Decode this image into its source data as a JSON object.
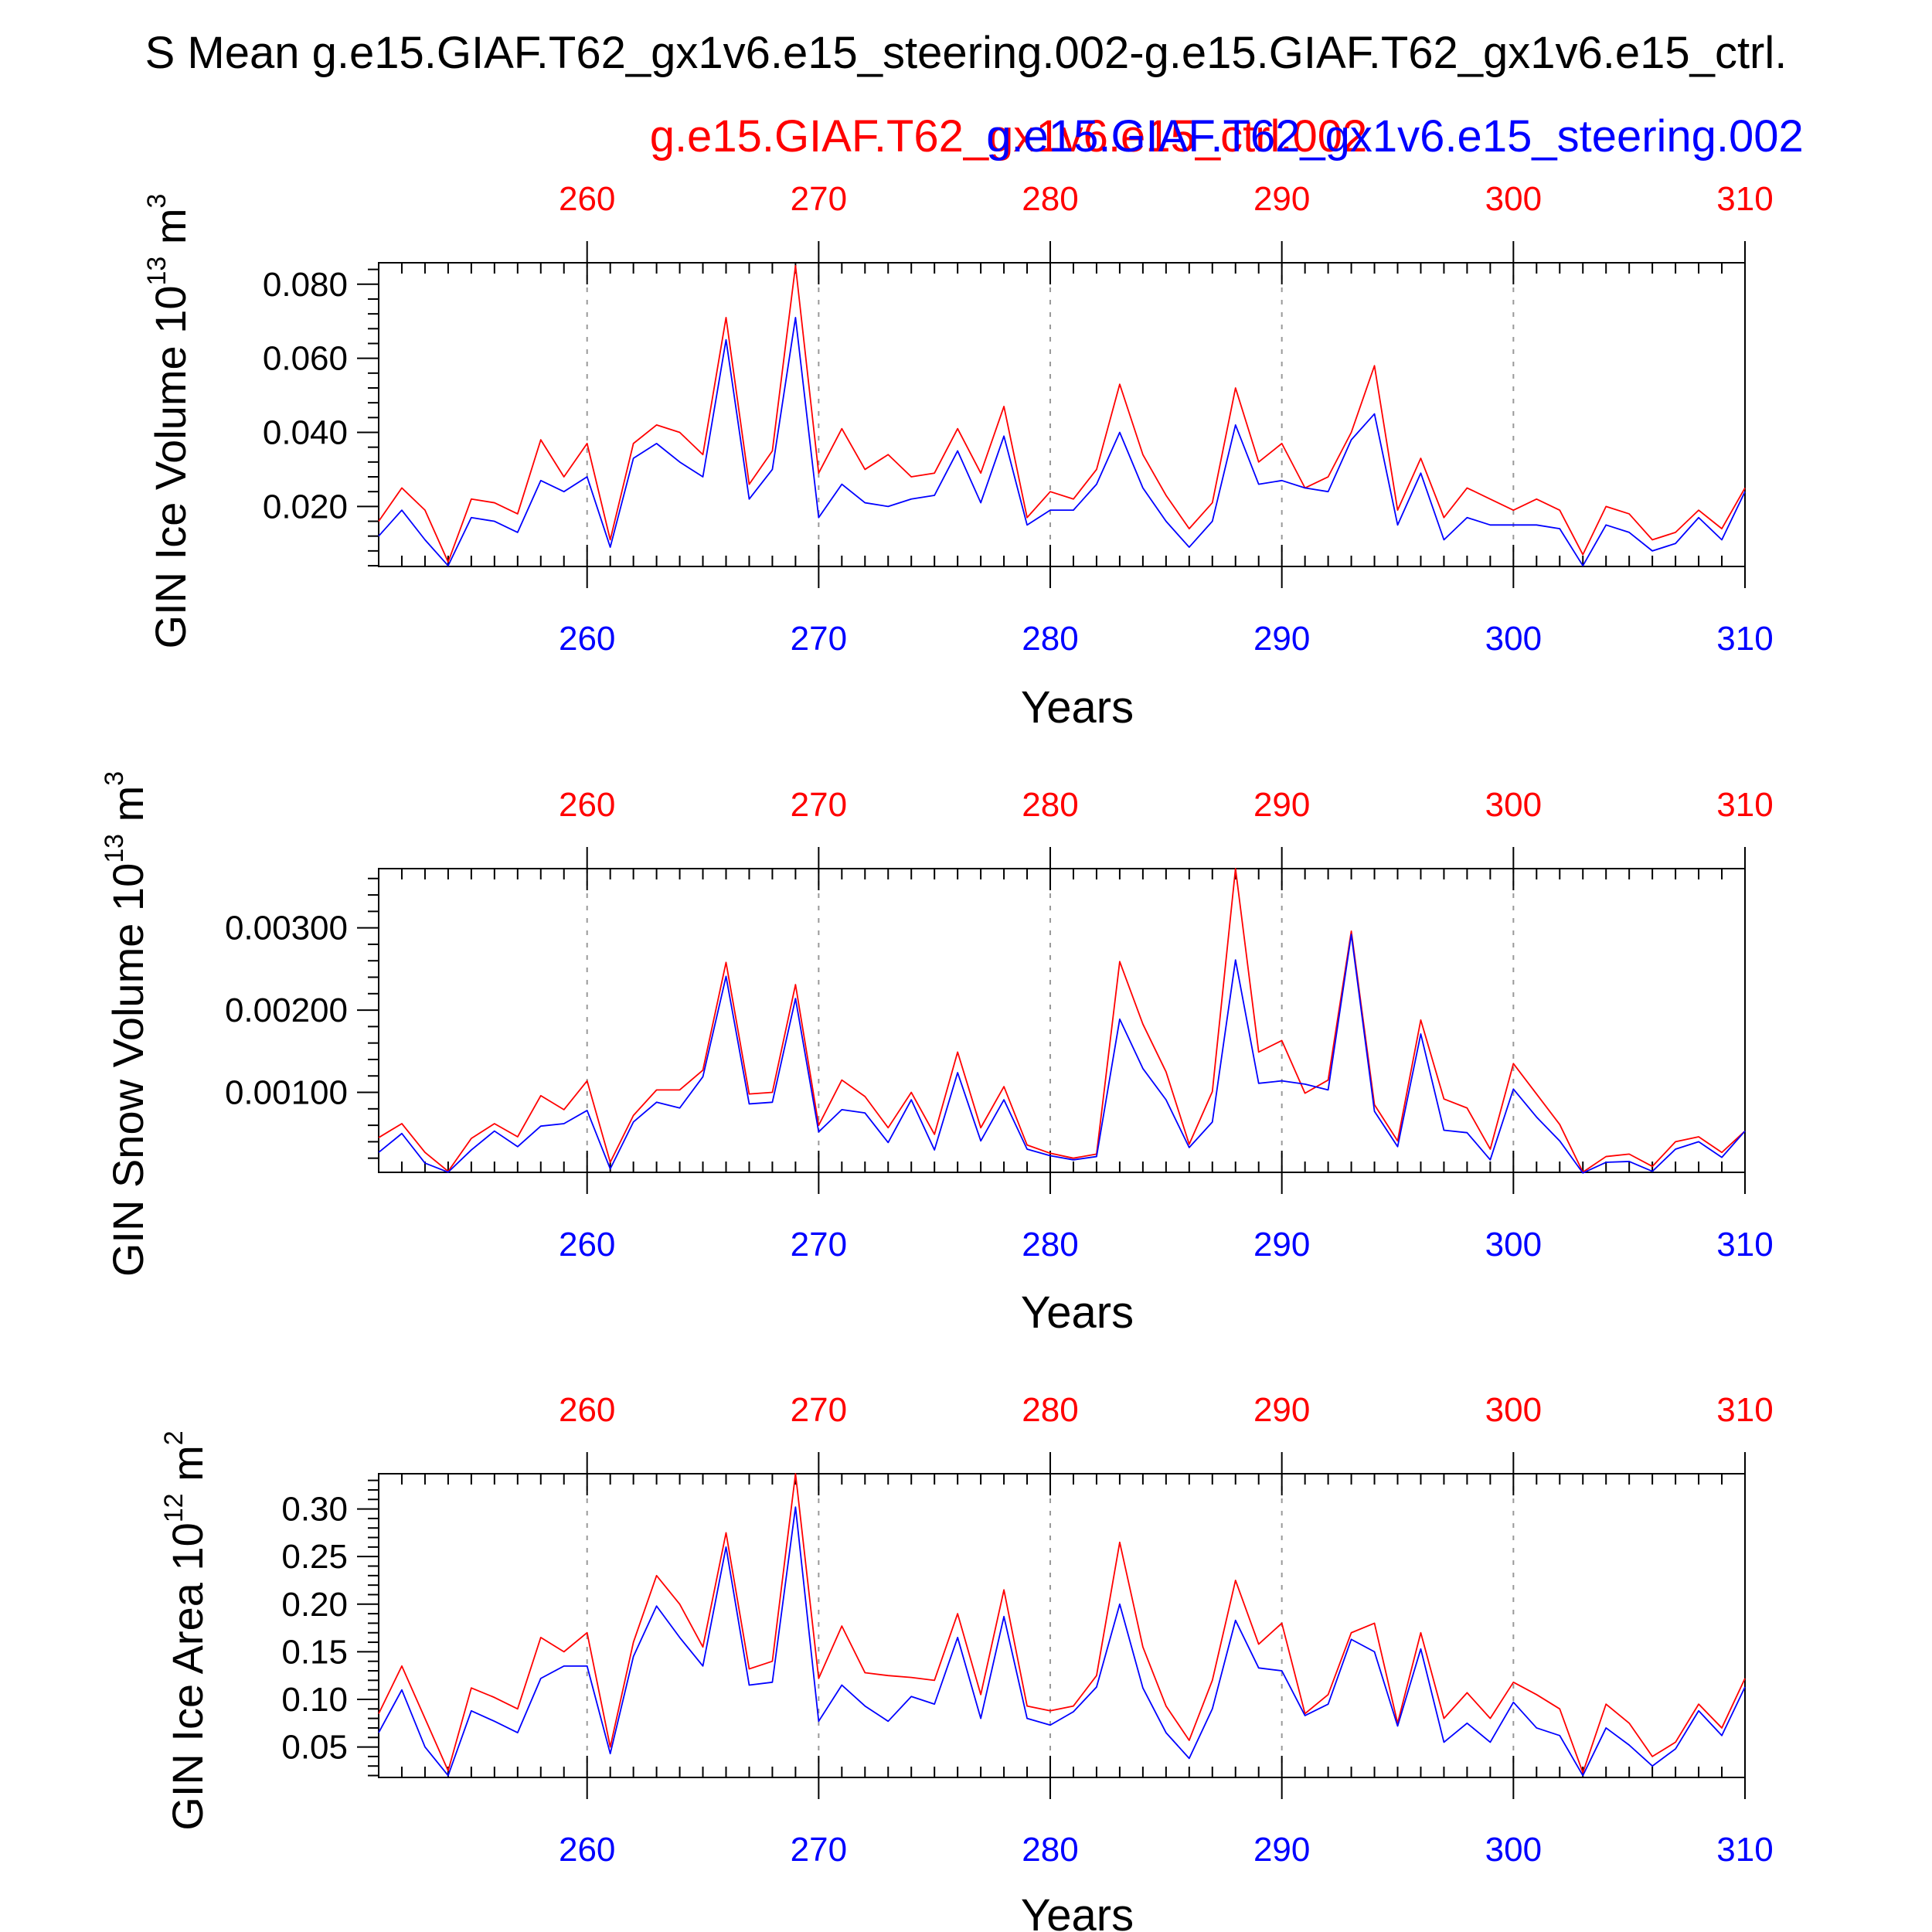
{
  "title": "S Mean g.e15.GIAF.T62_gx1v6.e15_steering.002-g.e15.GIAF.T62_gx1v6.e15_ctrl.",
  "legend": [
    {
      "label": "g.e15.GIAF.T62_gx1v6.e15_ctrl.002",
      "color": "#ff0000"
    },
    {
      "label": "g.e15.GIAF.T62_gx1v6.e15_steering.002",
      "color": "#0000ff"
    }
  ],
  "chart_data": [
    {
      "type": "line",
      "ylabel": "GIN Ice Volume 10",
      "ylabel_exp": "13",
      "ylabel_unit": " m",
      "ylabel_unit_exp": "3",
      "xlabel": "Years",
      "xlim": [
        251,
        310
      ],
      "ylim": [
        0.0038,
        0.0858
      ],
      "yticks": [
        0.02,
        0.04,
        0.06,
        0.08
      ],
      "yticklabels": [
        "0.020",
        "0.040",
        "0.060",
        "0.080"
      ],
      "yminor": 0.004,
      "xticks": [
        260,
        270,
        280,
        290,
        300,
        310
      ],
      "xticklabels": [
        "260",
        "270",
        "280",
        "290",
        "300",
        "310"
      ],
      "x_start": 251,
      "series": [
        {
          "name": "g.e15.GIAF.T62_gx1v6.e15_ctrl.002",
          "color": "#ff0000",
          "values": [
            0.016,
            0.025,
            0.019,
            0.005,
            0.022,
            0.021,
            0.018,
            0.038,
            0.028,
            0.037,
            0.011,
            0.037,
            0.042,
            0.04,
            0.034,
            0.071,
            0.026,
            0.035,
            0.085,
            0.029,
            0.041,
            0.03,
            0.034,
            0.028,
            0.029,
            0.041,
            0.029,
            0.047,
            0.017,
            0.024,
            0.022,
            0.03,
            0.053,
            0.034,
            0.023,
            0.014,
            0.021,
            0.052,
            0.032,
            0.037,
            0.025,
            0.028,
            0.04,
            0.058,
            0.019,
            0.033,
            0.017,
            0.025,
            0.022,
            0.019,
            0.022,
            0.019,
            0.007,
            0.02,
            0.018,
            0.011,
            0.013,
            0.019,
            0.014,
            0.025
          ]
        },
        {
          "name": "g.e15.GIAF.T62_gx1v6.e15_steering.002",
          "color": "#0000ff",
          "values": [
            0.012,
            0.019,
            0.011,
            0.004,
            0.017,
            0.016,
            0.013,
            0.027,
            0.024,
            0.028,
            0.009,
            0.033,
            0.037,
            0.032,
            0.028,
            0.065,
            0.022,
            0.03,
            0.071,
            0.017,
            0.026,
            0.021,
            0.02,
            0.022,
            0.023,
            0.035,
            0.021,
            0.039,
            0.015,
            0.019,
            0.019,
            0.026,
            0.04,
            0.025,
            0.016,
            0.009,
            0.016,
            0.042,
            0.026,
            0.027,
            0.025,
            0.024,
            0.038,
            0.045,
            0.015,
            0.029,
            0.011,
            0.017,
            0.015,
            0.015,
            0.015,
            0.014,
            0.004,
            0.015,
            0.013,
            0.008,
            0.01,
            0.017,
            0.011,
            0.024
          ]
        }
      ]
    },
    {
      "type": "line",
      "ylabel": "GIN Snow Volume 10",
      "ylabel_exp": "13",
      "ylabel_unit": " m",
      "ylabel_unit_exp": "3",
      "xlabel": "Years",
      "xlim": [
        251,
        310
      ],
      "ylim": [
        2.8e-05,
        0.00372
      ],
      "yticks": [
        0.001,
        0.002,
        0.003
      ],
      "yticklabels": [
        "0.00100",
        "0.00200",
        "0.00300"
      ],
      "yminor": 0.0002,
      "xticks": [
        260,
        270,
        280,
        290,
        300,
        310
      ],
      "xticklabels": [
        "260",
        "270",
        "280",
        "290",
        "300",
        "310"
      ],
      "x_start": 251,
      "series": [
        {
          "name": "g.e15.GIAF.T62_gx1v6.e15_ctrl.002",
          "color": "#ff0000",
          "values": [
            0.00045,
            0.00062,
            0.00027,
            4e-05,
            0.00044,
            0.00062,
            0.00046,
            0.00096,
            0.00079,
            0.00114,
            0.00015,
            0.00072,
            0.00103,
            0.00103,
            0.00127,
            0.00258,
            0.00098,
            0.001,
            0.00231,
            0.0006,
            0.00115,
            0.00095,
            0.00057,
            0.001,
            0.00049,
            0.00149,
            0.00057,
            0.00107,
            0.00036,
            0.00026,
            0.0002,
            0.00025,
            0.00259,
            0.00183,
            0.00125,
            0.00037,
            0.00101,
            0.00372,
            0.00149,
            0.00163,
            0.00099,
            0.00115,
            0.00296,
            0.00085,
            0.00041,
            0.00188,
            0.00092,
            0.00081,
            0.00031,
            0.00135,
            0.00098,
            0.00061,
            3e-05,
            0.00022,
            0.00025,
            0.0001,
            0.0004,
            0.00046,
            0.00027,
            0.00053
          ]
        },
        {
          "name": "g.e15.GIAF.T62_gx1v6.e15_steering.002",
          "color": "#0000ff",
          "values": [
            0.00027,
            0.0005,
            0.00014,
            3e-05,
            0.0003,
            0.00053,
            0.00034,
            0.00059,
            0.00062,
            0.00078,
            7e-05,
            0.00064,
            0.00088,
            0.00081,
            0.00119,
            0.00241,
            0.00086,
            0.00088,
            0.00214,
            0.00052,
            0.00079,
            0.00075,
            0.00039,
            0.00091,
            0.0003,
            0.00124,
            0.00041,
            0.00091,
            0.00031,
            0.00023,
            0.00018,
            0.00022,
            0.00189,
            0.00129,
            0.00091,
            0.00033,
            0.00064,
            0.00261,
            0.00111,
            0.00114,
            0.0011,
            0.00103,
            0.00292,
            0.00077,
            0.00034,
            0.00171,
            0.00054,
            0.00051,
            0.00018,
            0.00104,
            0.0007,
            0.00041,
            2e-05,
            0.00015,
            0.00016,
            4e-05,
            0.00031,
            0.0004,
            0.00021,
            0.00053
          ]
        }
      ]
    },
    {
      "type": "line",
      "ylabel": "GIN Ice Area 10",
      "ylabel_exp": "12",
      "ylabel_unit": " m",
      "ylabel_unit_exp": "2",
      "xlabel": "Years",
      "xlim": [
        251,
        310
      ],
      "ylim": [
        0.018,
        0.337
      ],
      "yticks": [
        0.05,
        0.1,
        0.15,
        0.2,
        0.25,
        0.3
      ],
      "yticklabels": [
        "0.05",
        "0.10",
        "0.15",
        "0.20",
        "0.25",
        "0.30"
      ],
      "yminor": 0.01,
      "xticks": [
        260,
        270,
        280,
        290,
        300,
        310
      ],
      "xticklabels": [
        "260",
        "270",
        "280",
        "290",
        "300",
        "310"
      ],
      "x_start": 251,
      "series": [
        {
          "name": "g.e15.GIAF.T62_gx1v6.e15_ctrl.002",
          "color": "#ff0000",
          "values": [
            0.085,
            0.135,
            0.08,
            0.025,
            0.112,
            0.102,
            0.09,
            0.165,
            0.15,
            0.17,
            0.05,
            0.16,
            0.23,
            0.2,
            0.155,
            0.275,
            0.132,
            0.14,
            0.337,
            0.122,
            0.177,
            0.128,
            0.125,
            0.123,
            0.12,
            0.19,
            0.105,
            0.215,
            0.093,
            0.088,
            0.093,
            0.125,
            0.265,
            0.155,
            0.093,
            0.057,
            0.12,
            0.225,
            0.158,
            0.18,
            0.085,
            0.105,
            0.17,
            0.18,
            0.075,
            0.17,
            0.08,
            0.107,
            0.08,
            0.118,
            0.105,
            0.09,
            0.023,
            0.095,
            0.075,
            0.04,
            0.055,
            0.095,
            0.07,
            0.122
          ]
        },
        {
          "name": "g.e15.GIAF.T62_gx1v6.e15_steering.002",
          "color": "#0000ff",
          "values": [
            0.065,
            0.11,
            0.05,
            0.02,
            0.088,
            0.077,
            0.065,
            0.122,
            0.135,
            0.135,
            0.043,
            0.145,
            0.198,
            0.165,
            0.135,
            0.26,
            0.115,
            0.118,
            0.302,
            0.077,
            0.115,
            0.093,
            0.077,
            0.103,
            0.095,
            0.165,
            0.08,
            0.187,
            0.08,
            0.073,
            0.087,
            0.113,
            0.2,
            0.112,
            0.065,
            0.038,
            0.09,
            0.183,
            0.133,
            0.13,
            0.083,
            0.095,
            0.163,
            0.15,
            0.072,
            0.153,
            0.055,
            0.075,
            0.055,
            0.097,
            0.07,
            0.062,
            0.02,
            0.07,
            0.052,
            0.03,
            0.048,
            0.088,
            0.062,
            0.113
          ]
        }
      ]
    }
  ]
}
